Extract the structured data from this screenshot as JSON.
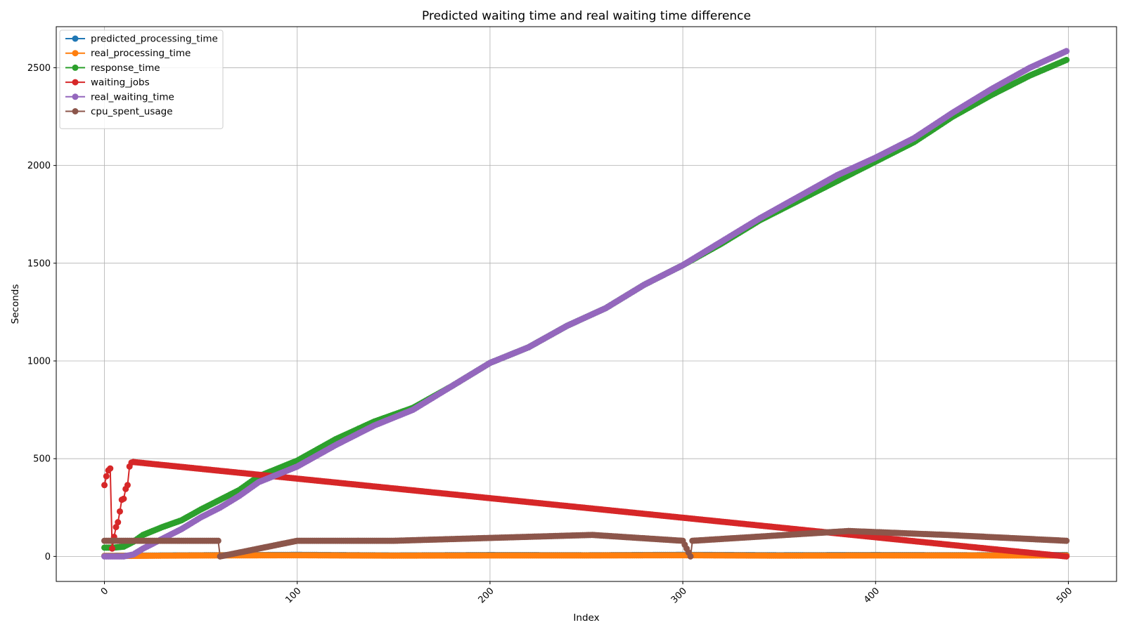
{
  "chart_data": {
    "type": "line",
    "title": "Predicted waiting time and real waiting time difference",
    "xlabel": "Index",
    "ylabel": "Seconds",
    "xlim": [
      -25,
      525
    ],
    "ylim": [
      -128,
      2710
    ],
    "x_ticks": [
      0,
      100,
      200,
      300,
      400,
      500
    ],
    "x_tick_labels": [
      "0",
      "100",
      "200",
      "300",
      "400",
      "500"
    ],
    "y_ticks": [
      0,
      500,
      1000,
      1500,
      2000,
      2500
    ],
    "y_tick_labels": [
      "0",
      "500",
      "1000",
      "1500",
      "2000",
      "2500"
    ],
    "x_tick_rotation": 45,
    "grid": true,
    "legend_position": "upper left",
    "markers": true,
    "series": [
      {
        "name": "predicted_processing_time",
        "color": "#1f77b4",
        "x": [
          0,
          50,
          100,
          150,
          200,
          250,
          300,
          350,
          400,
          450,
          499
        ],
        "values": [
          3,
          6,
          8,
          5,
          7,
          6,
          8,
          6,
          7,
          6,
          7
        ]
      },
      {
        "name": "real_processing_time",
        "color": "#ff7f0e",
        "x": [
          0,
          50,
          100,
          150,
          200,
          250,
          300,
          350,
          400,
          450,
          499
        ],
        "values": [
          2,
          5,
          6,
          4,
          5,
          5,
          6,
          4,
          5,
          5,
          5
        ]
      },
      {
        "name": "response_time",
        "color": "#2ca02c",
        "x": [
          0,
          5,
          10,
          15,
          20,
          30,
          40,
          50,
          60,
          70,
          80,
          90,
          100,
          120,
          140,
          160,
          180,
          200,
          220,
          240,
          260,
          280,
          300,
          320,
          340,
          360,
          380,
          400,
          420,
          440,
          460,
          480,
          499
        ],
        "values": [
          45,
          45,
          50,
          75,
          110,
          150,
          185,
          240,
          290,
          340,
          410,
          450,
          490,
          600,
          690,
          760,
          870,
          990,
          1070,
          1180,
          1270,
          1390,
          1490,
          1600,
          1720,
          1820,
          1920,
          2020,
          2120,
          2250,
          2360,
          2460,
          2540
        ]
      },
      {
        "name": "waiting_jobs",
        "color": "#d62728",
        "x": [
          0,
          1,
          2,
          3,
          4,
          5,
          6,
          7,
          8,
          9,
          10,
          11,
          12,
          13,
          14,
          15,
          20,
          50,
          100,
          150,
          200,
          250,
          300,
          350,
          400,
          450,
          499
        ],
        "values": [
          365,
          410,
          440,
          450,
          40,
          100,
          150,
          175,
          230,
          290,
          295,
          345,
          365,
          460,
          480,
          483,
          478,
          448,
          398,
          348,
          298,
          248,
          198,
          148,
          98,
          48,
          0
        ]
      },
      {
        "name": "real_waiting_time",
        "color": "#9467bd",
        "x": [
          0,
          5,
          10,
          15,
          20,
          30,
          40,
          50,
          60,
          70,
          80,
          90,
          100,
          120,
          140,
          160,
          180,
          200,
          220,
          240,
          260,
          280,
          300,
          320,
          340,
          360,
          380,
          400,
          420,
          440,
          460,
          480,
          499
        ],
        "values": [
          0,
          0,
          0,
          10,
          40,
          90,
          140,
          200,
          250,
          310,
          380,
          420,
          460,
          570,
          670,
          750,
          870,
          990,
          1070,
          1180,
          1270,
          1390,
          1490,
          1610,
          1730,
          1840,
          1950,
          2040,
          2140,
          2270,
          2390,
          2500,
          2585
        ]
      },
      {
        "name": "cpu_spent_usage",
        "color": "#8c564b",
        "x": [
          0,
          59,
          60,
          100,
          150,
          253,
          300,
          304,
          305,
          386,
          437,
          499
        ],
        "values": [
          80,
          80,
          0,
          80,
          80,
          110,
          80,
          0,
          80,
          130,
          110,
          80
        ]
      }
    ]
  }
}
